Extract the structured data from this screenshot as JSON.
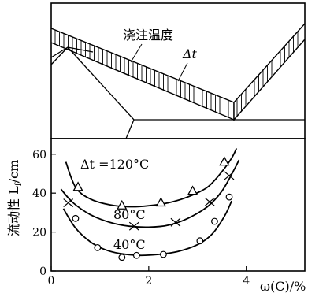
{
  "chart_data": [
    {
      "type": "diagram",
      "annotations": {
        "pouring_temperature": "浇注温度",
        "delta_t": "Δt"
      }
    },
    {
      "type": "line",
      "xlabel": "ω(C)/%",
      "ylabel": "流动性 L",
      "ylabel_sub": "f",
      "ylabel_unit": "/cm",
      "xlim": [
        0,
        5.2
      ],
      "ylim": [
        0,
        68
      ],
      "xticks": [
        0,
        2,
        4
      ],
      "yticks": [
        0,
        20,
        40,
        60
      ],
      "series": [
        {
          "name": "Δt =120°C",
          "marker": "triangle",
          "curve": [
            [
              0.3,
              56
            ],
            [
              0.5,
              43
            ],
            [
              0.8,
              37
            ],
            [
              1.2,
              34
            ],
            [
              1.6,
              33
            ],
            [
              2.0,
              33.5
            ],
            [
              2.4,
              35
            ],
            [
              2.8,
              38
            ],
            [
              3.2,
              43
            ],
            [
              3.5,
              51
            ],
            [
              3.7,
              58
            ],
            [
              3.8,
              63
            ]
          ],
          "points": [
            [
              0.55,
              43
            ],
            [
              1.45,
              33.5
            ],
            [
              2.25,
              35
            ],
            [
              2.9,
              41
            ],
            [
              3.55,
              56
            ]
          ]
        },
        {
          "name": "80°C",
          "marker": "cross",
          "curve": [
            [
              0.2,
              42
            ],
            [
              0.45,
              35
            ],
            [
              0.8,
              29
            ],
            [
              1.2,
              25
            ],
            [
              1.6,
              23
            ],
            [
              2.0,
              22.5
            ],
            [
              2.4,
              23.5
            ],
            [
              2.8,
              27
            ],
            [
              3.2,
              33
            ],
            [
              3.5,
              41
            ],
            [
              3.75,
              52
            ],
            [
              3.85,
              57
            ]
          ],
          "points": [
            [
              0.35,
              35
            ],
            [
              1.7,
              23
            ],
            [
              2.55,
              25
            ],
            [
              3.25,
              35.5
            ],
            [
              3.65,
              49
            ]
          ]
        },
        {
          "name": "40°C",
          "marker": "circle",
          "curve": [
            [
              0.25,
              32
            ],
            [
              0.5,
              22
            ],
            [
              0.8,
              15
            ],
            [
              1.1,
              11
            ],
            [
              1.4,
              9
            ],
            [
              1.8,
              8
            ],
            [
              2.2,
              8.5
            ],
            [
              2.6,
              10
            ],
            [
              3.0,
              13.5
            ],
            [
              3.3,
              19
            ],
            [
              3.55,
              28
            ],
            [
              3.7,
              36
            ]
          ],
          "points": [
            [
              0.5,
              27
            ],
            [
              0.95,
              12
            ],
            [
              1.45,
              7
            ],
            [
              1.75,
              8
            ],
            [
              2.3,
              8.5
            ],
            [
              3.05,
              15.5
            ],
            [
              3.35,
              25.5
            ],
            [
              3.65,
              38
            ]
          ]
        }
      ]
    }
  ]
}
